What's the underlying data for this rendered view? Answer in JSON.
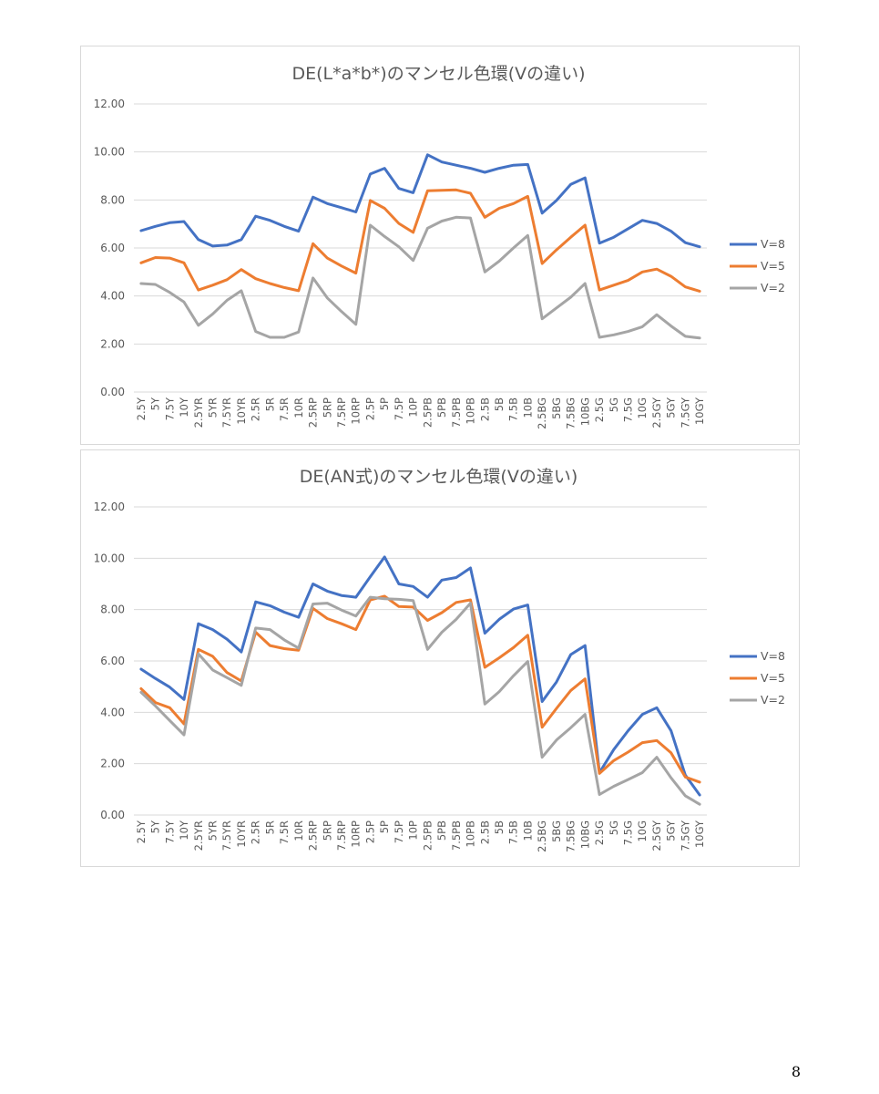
{
  "page": {
    "number": "8"
  },
  "chart_data": [
    {
      "type": "line",
      "title": "DE(L*a*b*)のマンセル色環(Vの違い)",
      "ylim": [
        0,
        12
      ],
      "yticks": [
        "0.00",
        "2.00",
        "4.00",
        "6.00",
        "8.00",
        "10.00",
        "12.00"
      ],
      "grid": true,
      "legend_position": "right",
      "categories": [
        "2.5Y",
        "5Y",
        "7.5Y",
        "10Y",
        "2.5YR",
        "5YR",
        "7.5YR",
        "10YR",
        "2.5R",
        "5R",
        "7.5R",
        "10R",
        "2.5RP",
        "5RP",
        "7.5RP",
        "10RP",
        "2.5P",
        "5P",
        "7.5P",
        "10P",
        "2.5PB",
        "5PB",
        "7.5PB",
        "10PB",
        "2.5B",
        "5B",
        "7.5B",
        "10B",
        "2.5BG",
        "5BG",
        "7.5BG",
        "10BG",
        "2.5G",
        "5G",
        "7.5G",
        "10G",
        "2.5GY",
        "5GY",
        "7.5GY",
        "10GY"
      ],
      "series": [
        {
          "name": "V=8",
          "color": "#4472C4",
          "values": [
            6.72,
            6.9,
            7.05,
            7.1,
            6.35,
            6.08,
            6.12,
            6.35,
            7.32,
            7.15,
            6.9,
            6.7,
            8.12,
            7.85,
            7.68,
            7.5,
            9.08,
            9.32,
            8.48,
            8.3,
            9.88,
            9.58,
            9.45,
            9.32,
            9.15,
            9.32,
            9.45,
            9.48,
            7.45,
            7.98,
            8.65,
            8.92,
            6.2,
            6.45,
            6.8,
            7.15,
            7.02,
            6.7,
            6.22,
            6.05
          ]
        },
        {
          "name": "V=5",
          "color": "#ED7D31",
          "values": [
            5.38,
            5.6,
            5.58,
            5.38,
            4.25,
            4.45,
            4.68,
            5.1,
            4.72,
            4.52,
            4.35,
            4.22,
            6.18,
            5.58,
            5.25,
            4.95,
            7.98,
            7.65,
            7.02,
            6.65,
            8.38,
            8.4,
            8.42,
            8.28,
            7.28,
            7.65,
            7.85,
            8.15,
            5.35,
            5.92,
            6.45,
            6.95,
            4.25,
            4.45,
            4.65,
            5.0,
            5.12,
            4.82,
            4.38,
            4.2
          ]
        },
        {
          "name": "V=2",
          "color": "#A5A5A5",
          "values": [
            4.52,
            4.48,
            4.15,
            3.75,
            2.78,
            3.25,
            3.82,
            4.22,
            2.52,
            2.28,
            2.28,
            2.5,
            4.75,
            3.92,
            3.35,
            2.82,
            6.95,
            6.48,
            6.05,
            5.48,
            6.82,
            7.12,
            7.28,
            7.25,
            5.0,
            5.45,
            6.0,
            6.52,
            3.05,
            3.5,
            3.95,
            4.52,
            2.28,
            2.38,
            2.52,
            2.72,
            3.22,
            2.75,
            2.32,
            2.25
          ]
        }
      ]
    },
    {
      "type": "line",
      "title": "DE(AN式)のマンセル色環(Vの違い)",
      "ylim": [
        0,
        12
      ],
      "yticks": [
        "0.00",
        "2.00",
        "4.00",
        "6.00",
        "8.00",
        "10.00",
        "12.00"
      ],
      "grid": true,
      "legend_position": "right",
      "categories": [
        "2.5Y",
        "5Y",
        "7.5Y",
        "10Y",
        "2.5YR",
        "5YR",
        "7.5YR",
        "10YR",
        "2.5R",
        "5R",
        "7.5R",
        "10R",
        "2.5RP",
        "5RP",
        "7.5RP",
        "10RP",
        "2.5P",
        "5P",
        "7.5P",
        "10P",
        "2.5PB",
        "5PB",
        "7.5PB",
        "10PB",
        "2.5B",
        "5B",
        "7.5B",
        "10B",
        "2.5BG",
        "5BG",
        "7.5BG",
        "10BG",
        "2.5G",
        "5G",
        "7.5G",
        "10G",
        "2.5GY",
        "5GY",
        "7.5GY",
        "10GY"
      ],
      "series": [
        {
          "name": "V=8",
          "color": "#4472C4",
          "values": [
            5.68,
            5.32,
            4.98,
            4.5,
            7.45,
            7.22,
            6.85,
            6.35,
            8.3,
            8.15,
            7.9,
            7.7,
            9.0,
            8.72,
            8.55,
            8.48,
            9.28,
            10.05,
            9.0,
            8.9,
            8.48,
            9.15,
            9.25,
            9.62,
            7.08,
            7.62,
            8.02,
            8.18,
            4.42,
            5.18,
            6.25,
            6.6,
            1.65,
            2.55,
            3.28,
            3.92,
            4.18,
            3.28,
            1.55,
            0.78
          ]
        },
        {
          "name": "V=5",
          "color": "#ED7D31",
          "values": [
            4.92,
            4.38,
            4.18,
            3.55,
            6.45,
            6.18,
            5.55,
            5.22,
            7.12,
            6.6,
            6.48,
            6.42,
            8.05,
            7.65,
            7.45,
            7.22,
            8.38,
            8.52,
            8.12,
            8.1,
            7.58,
            7.88,
            8.28,
            8.38,
            5.75,
            6.12,
            6.52,
            7.0,
            3.42,
            4.15,
            4.85,
            5.3,
            1.62,
            2.12,
            2.45,
            2.82,
            2.9,
            2.42,
            1.48,
            1.28
          ]
        },
        {
          "name": "V=2",
          "color": "#A5A5A5",
          "values": [
            4.78,
            4.25,
            3.68,
            3.12,
            6.28,
            5.65,
            5.35,
            5.05,
            7.28,
            7.22,
            6.82,
            6.5,
            8.22,
            8.25,
            7.98,
            7.75,
            8.48,
            8.42,
            8.4,
            8.35,
            6.45,
            7.12,
            7.62,
            8.25,
            4.32,
            4.8,
            5.42,
            5.98,
            2.25,
            2.92,
            3.4,
            3.92,
            0.8,
            1.12,
            1.38,
            1.65,
            2.25,
            1.45,
            0.75,
            0.42
          ]
        }
      ]
    }
  ]
}
